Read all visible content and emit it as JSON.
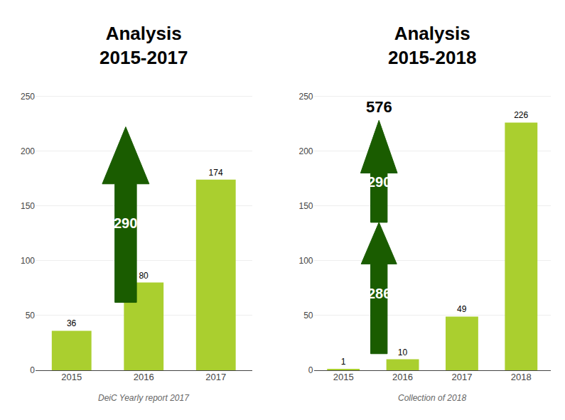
{
  "chart_data": [
    {
      "type": "bar",
      "title": "Analysis\n2015-2017",
      "subtitle": "DeiC Yearly report 2017",
      "categories": [
        "2015",
        "2016",
        "2017"
      ],
      "values": [
        36,
        80,
        174
      ],
      "color": "#aacf2f",
      "ylim": [
        0,
        260
      ],
      "yticks": [
        0,
        50,
        100,
        150,
        200,
        250
      ],
      "grid": true,
      "data_labels": true,
      "annotations": [
        {
          "text": "290",
          "color": "#1a5c00"
        }
      ]
    },
    {
      "type": "bar",
      "title": "Analysis\n2015-2018",
      "subtitle": "Collection of 2018",
      "categories": [
        "2015",
        "2016",
        "2017",
        "2018"
      ],
      "values": [
        1,
        10,
        49,
        226
      ],
      "color": "#aacf2f",
      "ylim": [
        0,
        260
      ],
      "yticks": [
        0,
        50,
        100,
        150,
        200,
        250
      ],
      "grid": true,
      "data_labels": true,
      "annotations": [
        {
          "text": "286",
          "color": "#1a5c00"
        },
        {
          "text": "290",
          "color": "#1a5c00"
        },
        {
          "text": "576"
        }
      ]
    }
  ]
}
